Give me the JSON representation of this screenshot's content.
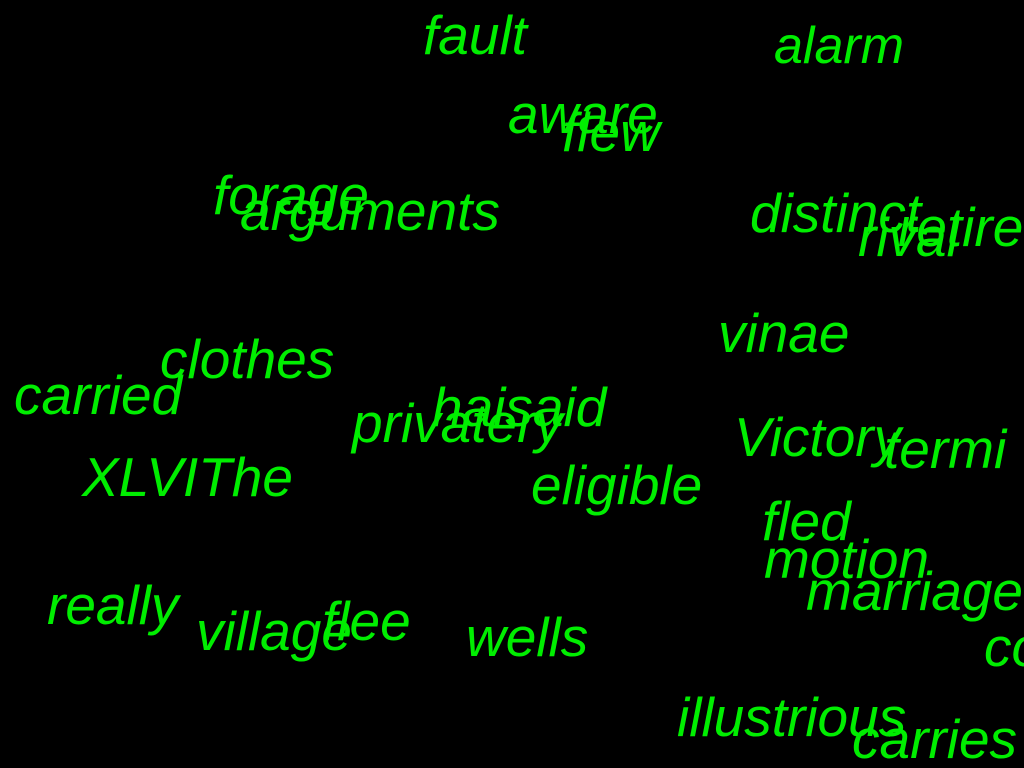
{
  "style": {
    "background": "#000000",
    "text_color": "#00ee00"
  },
  "words": [
    "fault",
    "alarm",
    "aware",
    "flew",
    "forage",
    "arguments",
    "distinct",
    "rival",
    "retire",
    "vinae",
    "clothes",
    "carried",
    "haisaid",
    "privatery",
    "Victory",
    "termi",
    "XLVIThe",
    "eligible",
    "fled",
    "motion",
    "marriage",
    "really",
    "village",
    "flee",
    "wells",
    "co",
    "illustrious",
    "carries"
  ]
}
